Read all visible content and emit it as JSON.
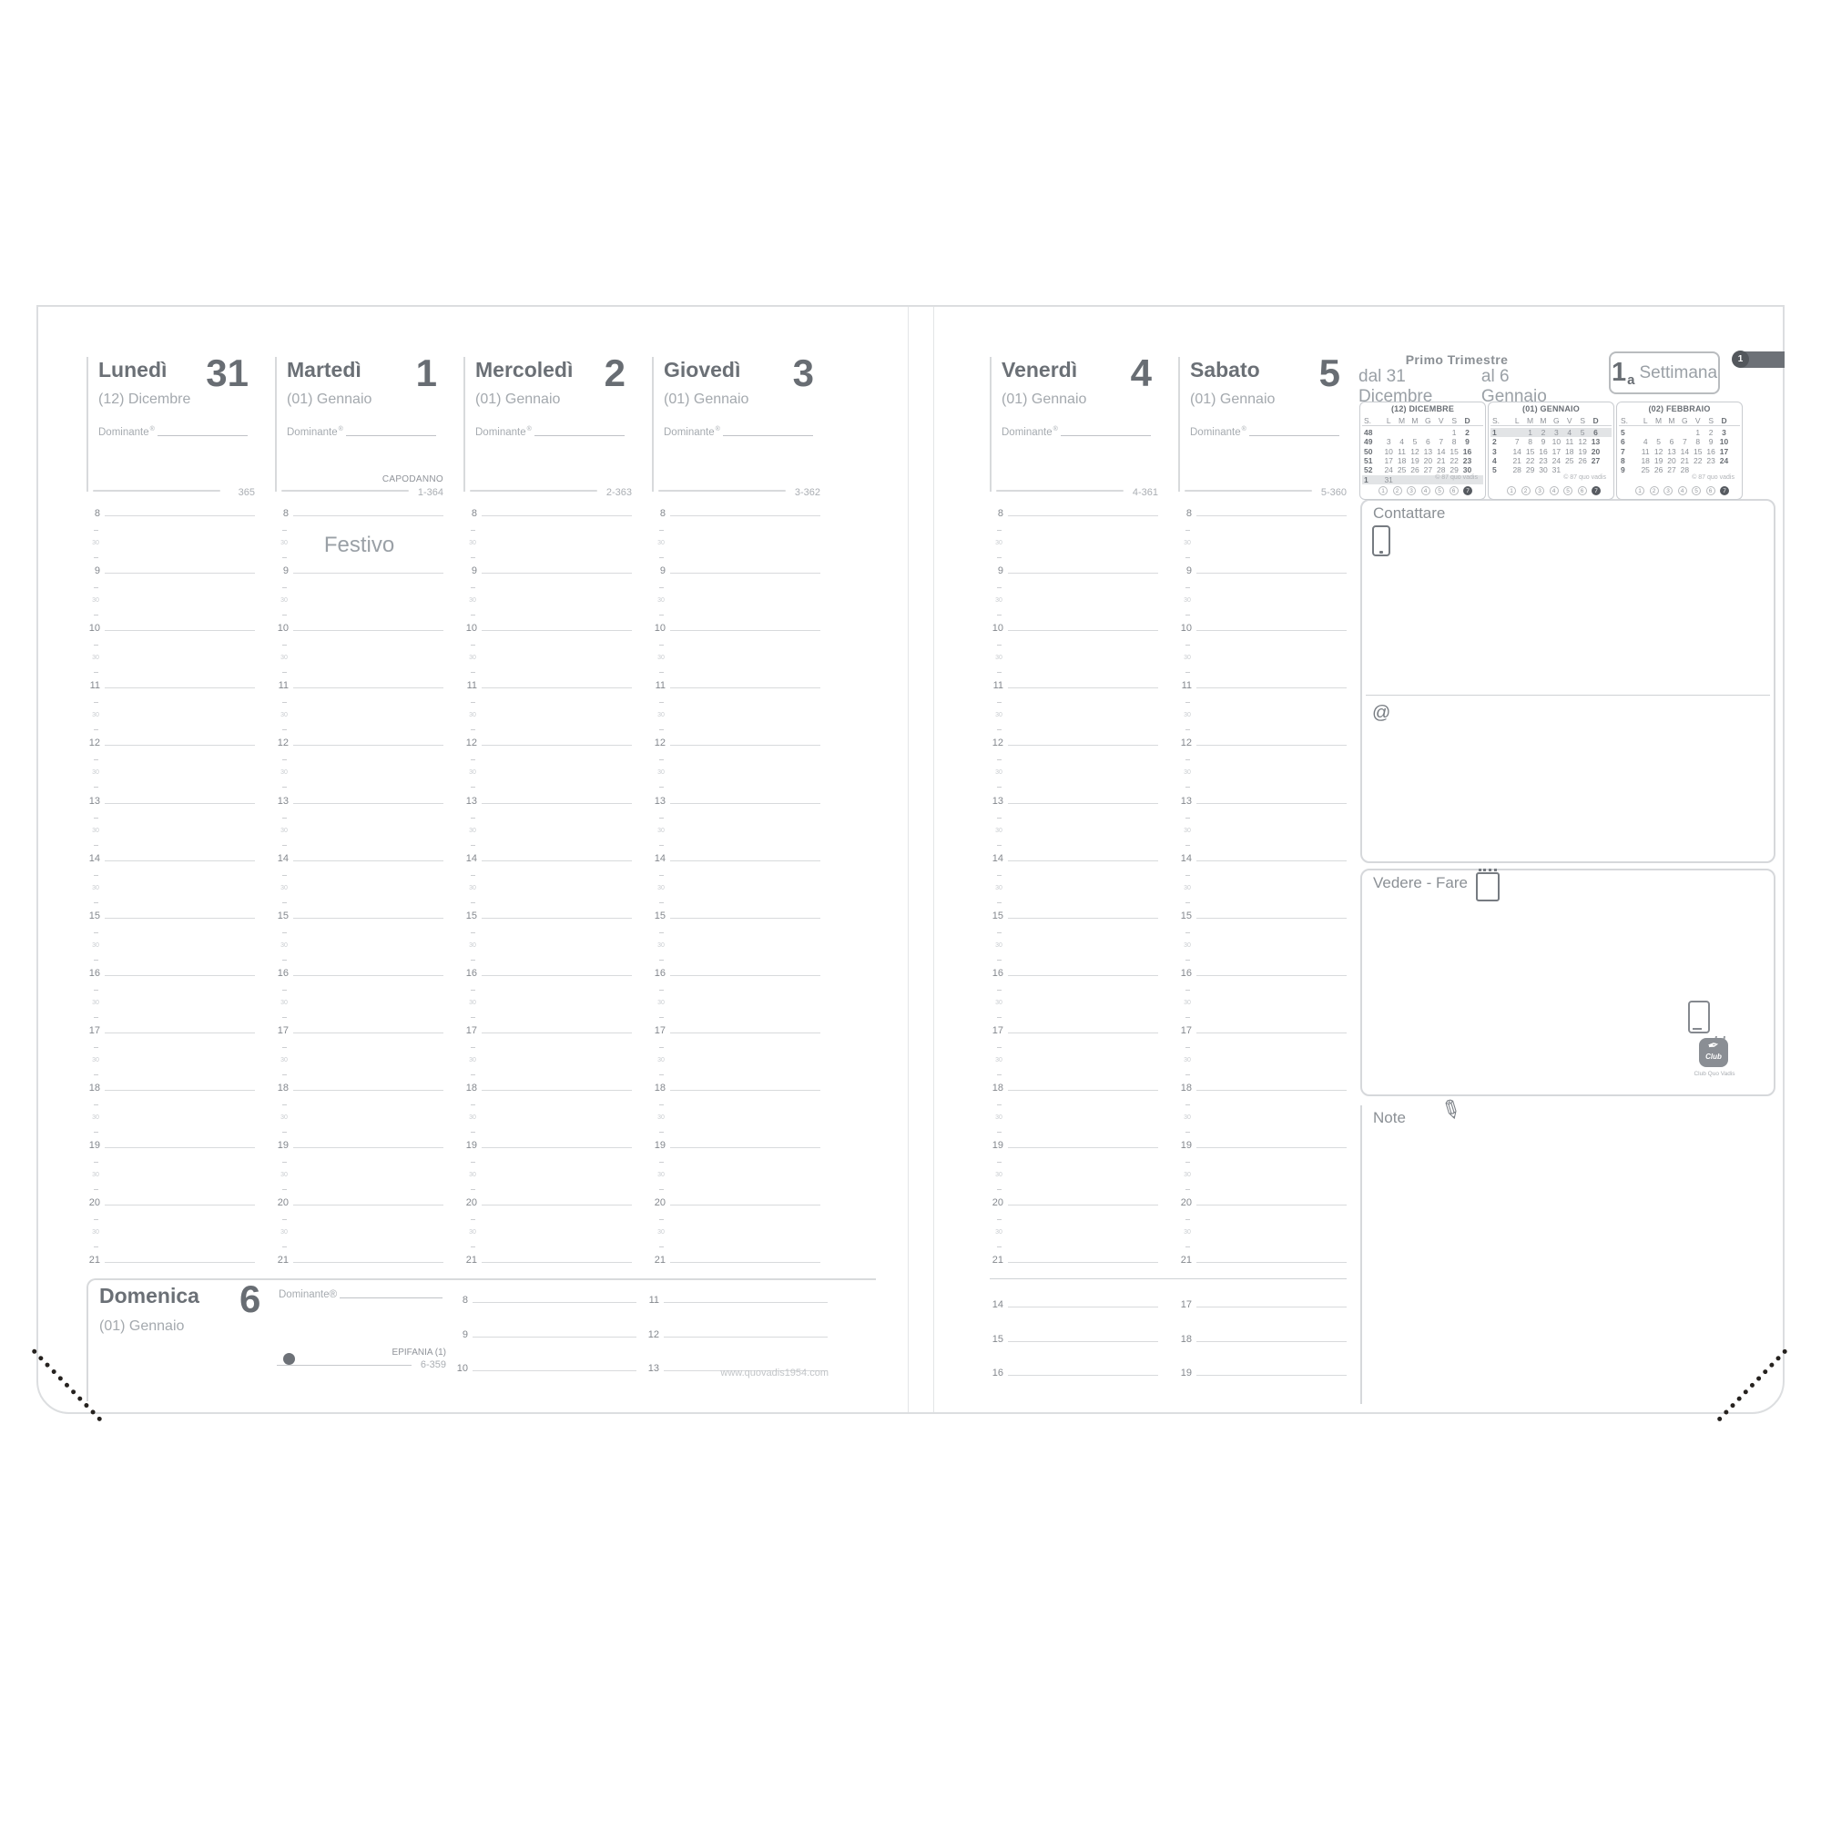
{
  "week_header": {
    "trimester": "Primo Trimestre",
    "date_from": "dal 31 Dicembre",
    "date_to": "al 6 Gennaio",
    "week_number": "1",
    "week_ordinal": "a",
    "week_word": "Settimana",
    "edge_tab_number": "1"
  },
  "labels": {
    "dominante": "Dominante",
    "registered_mark": "®",
    "contattare": "Contattare",
    "at_sign": "@",
    "vedere_fare": "Vedere - Fare",
    "note": "Note",
    "club": "Club",
    "club_caption": "Club Quo Vadis",
    "website": "www.quovadis1954.com",
    "half_hour_mark": "30",
    "moon_symbol": "●"
  },
  "days": [
    {
      "id": "lunedi",
      "name": "Lunedì",
      "number": "31",
      "month": "(12) Dicembre",
      "day_of_year": "365",
      "holiday": "",
      "note": ""
    },
    {
      "id": "martedi",
      "name": "Martedì",
      "number": "1",
      "month": "(01) Gennaio",
      "day_of_year": "1-364",
      "holiday": "CAPODANNO",
      "note": "Festivo"
    },
    {
      "id": "mercoledi",
      "name": "Mercoledì",
      "number": "2",
      "month": "(01) Gennaio",
      "day_of_year": "2-363",
      "holiday": "",
      "note": ""
    },
    {
      "id": "giovedi",
      "name": "Giovedì",
      "number": "3",
      "month": "(01) Gennaio",
      "day_of_year": "3-362",
      "holiday": "",
      "note": ""
    },
    {
      "id": "venerdi",
      "name": "Venerdì",
      "number": "4",
      "month": "(01) Gennaio",
      "day_of_year": "4-361",
      "holiday": "",
      "note": ""
    },
    {
      "id": "sabato",
      "name": "Sabato",
      "number": "5",
      "month": "(01) Gennaio",
      "day_of_year": "5-360",
      "holiday": "",
      "note": ""
    }
  ],
  "hours": [
    "8",
    "9",
    "10",
    "11",
    "12",
    "13",
    "14",
    "15",
    "16",
    "17",
    "18",
    "19",
    "20",
    "21"
  ],
  "sunday": {
    "id": "domenica",
    "name": "Domenica",
    "number": "6",
    "month": "(01) Gennaio",
    "holiday": "EPIFANIA (1)",
    "day_of_year": "6-359",
    "hour_groups": [
      [
        "8",
        "9",
        "10"
      ],
      [
        "11",
        "12",
        "13"
      ],
      [
        "14",
        "15",
        "16"
      ],
      [
        "17",
        "18",
        "19"
      ]
    ]
  },
  "calendar_weekdays": [
    "S.",
    "L",
    "M",
    "M",
    "G",
    "V",
    "S",
    "D"
  ],
  "calendar_copyright": "© 87 quo vadis",
  "footer_circles": [
    "1",
    "2",
    "3",
    "4",
    "5",
    "6",
    "7"
  ],
  "footer_circles_active": "7",
  "mini_calendars": [
    {
      "title": "(12) DICEMBRE",
      "highlight_week_index": 5,
      "weeks": [
        {
          "wk": "48",
          "days": [
            "",
            "",
            "",
            "",
            "",
            "1",
            "2"
          ]
        },
        {
          "wk": "49",
          "days": [
            "3",
            "4",
            "5",
            "6",
            "7",
            "8",
            "9"
          ]
        },
        {
          "wk": "50",
          "days": [
            "10",
            "11",
            "12",
            "13",
            "14",
            "15",
            "16"
          ]
        },
        {
          "wk": "51",
          "days": [
            "17",
            "18",
            "19",
            "20",
            "21",
            "22",
            "23"
          ]
        },
        {
          "wk": "52",
          "days": [
            "24",
            "25",
            "26",
            "27",
            "28",
            "29",
            "30"
          ]
        },
        {
          "wk": "1",
          "days": [
            "31",
            "",
            "",
            "",
            "",
            "",
            ""
          ]
        }
      ]
    },
    {
      "title": "(01) GENNAIO",
      "highlight_week_index": 0,
      "weeks": [
        {
          "wk": "1",
          "days": [
            "",
            "1",
            "2",
            "3",
            "4",
            "5",
            "6"
          ]
        },
        {
          "wk": "2",
          "days": [
            "7",
            "8",
            "9",
            "10",
            "11",
            "12",
            "13"
          ]
        },
        {
          "wk": "3",
          "days": [
            "14",
            "15",
            "16",
            "17",
            "18",
            "19",
            "20"
          ]
        },
        {
          "wk": "4",
          "days": [
            "21",
            "22",
            "23",
            "24",
            "25",
            "26",
            "27"
          ]
        },
        {
          "wk": "5",
          "days": [
            "28",
            "29",
            "30",
            "31",
            "",
            "",
            ""
          ]
        }
      ]
    },
    {
      "title": "(02) FEBBRAIO",
      "highlight_week_index": -1,
      "weeks": [
        {
          "wk": "5",
          "days": [
            "",
            "",
            "",
            "",
            "1",
            "2",
            "3"
          ]
        },
        {
          "wk": "6",
          "days": [
            "4",
            "5",
            "6",
            "7",
            "8",
            "9",
            "10"
          ]
        },
        {
          "wk": "7",
          "days": [
            "11",
            "12",
            "13",
            "14",
            "15",
            "16",
            "17"
          ]
        },
        {
          "wk": "8",
          "days": [
            "18",
            "19",
            "20",
            "21",
            "22",
            "23",
            "24"
          ]
        },
        {
          "wk": "9",
          "days": [
            "25",
            "26",
            "27",
            "28",
            "",
            "",
            ""
          ]
        }
      ]
    }
  ]
}
